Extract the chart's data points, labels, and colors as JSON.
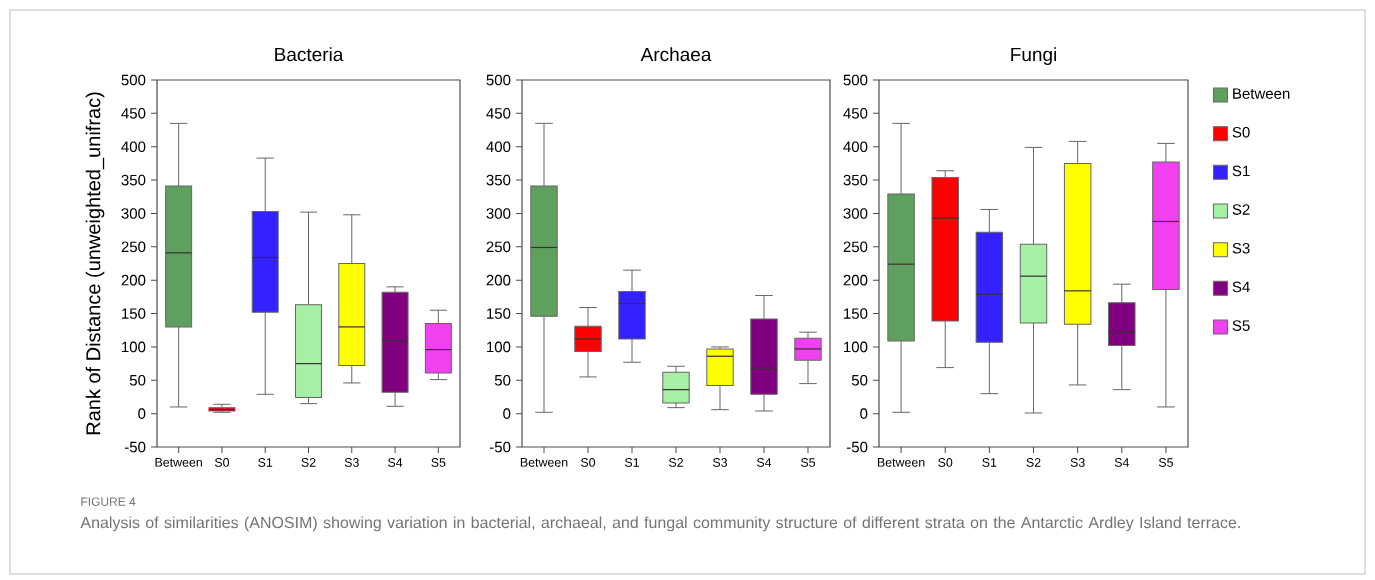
{
  "chart_data": [
    {
      "type": "box",
      "title": "Bacteria",
      "ylabel": "Rank of Distance (unweighted_unifrac)",
      "categories": [
        "Between",
        "S0",
        "S1",
        "S2",
        "S3",
        "S4",
        "S5"
      ],
      "colors": [
        "#5fa05f",
        "#ff0000",
        "#3322ff",
        "#a6f0a6",
        "#ffff00",
        "#800080",
        "#f040f0"
      ],
      "boxes": [
        {
          "low": 10,
          "q1": 130,
          "median": 241,
          "q3": 341,
          "high": 435
        },
        {
          "low": 2,
          "q1": 4,
          "median": 6,
          "q3": 9,
          "high": 14
        },
        {
          "low": 29,
          "q1": 152,
          "median": 234,
          "q3": 303,
          "high": 383
        },
        {
          "low": 15,
          "q1": 24,
          "median": 75,
          "q3": 163,
          "high": 302
        },
        {
          "low": 46,
          "q1": 72,
          "median": 130,
          "q3": 225,
          "high": 298
        },
        {
          "low": 11,
          "q1": 32,
          "median": 109,
          "q3": 182,
          "high": 190
        },
        {
          "low": 51,
          "q1": 61,
          "median": 96,
          "q3": 135,
          "high": 155
        }
      ],
      "ylim": [
        -50,
        500
      ],
      "yticks": [
        -50,
        0,
        50,
        100,
        150,
        200,
        250,
        300,
        350,
        400,
        450,
        500
      ],
      "annotations": [
        "FIGURE 4",
        "Analysis of similarities (ANOSIM) showing variation in bacterial, archaeal, and fungal community structure of different strata on the Antarctic Ardley Island terrace."
      ]
    },
    {
      "type": "box",
      "title": "Archaea",
      "categories": [
        "Between",
        "S0",
        "S1",
        "S2",
        "S3",
        "S4",
        "S5"
      ],
      "colors": [
        "#5fa05f",
        "#ff0000",
        "#3322ff",
        "#a6f0a6",
        "#ffff00",
        "#800080",
        "#f040f0"
      ],
      "boxes": [
        {
          "low": 2,
          "q1": 146,
          "median": 249,
          "q3": 341,
          "high": 435
        },
        {
          "low": 55,
          "q1": 93,
          "median": 112,
          "q3": 131,
          "high": 159
        },
        {
          "low": 77,
          "q1": 112,
          "median": 165,
          "q3": 183,
          "high": 215
        },
        {
          "low": 9,
          "q1": 16,
          "median": 36,
          "q3": 62,
          "high": 71
        },
        {
          "low": 6,
          "q1": 42,
          "median": 86,
          "q3": 97,
          "high": 100
        },
        {
          "low": 4,
          "q1": 29,
          "median": 68,
          "q3": 142,
          "high": 177
        },
        {
          "low": 45,
          "q1": 80,
          "median": 97,
          "q3": 113,
          "high": 122
        }
      ],
      "ylim": [
        -50,
        500
      ],
      "yticks": [
        -50,
        0,
        50,
        100,
        150,
        200,
        250,
        300,
        350,
        400,
        450,
        500
      ]
    },
    {
      "type": "box",
      "title": "Fungi",
      "categories": [
        "Between",
        "S0",
        "S1",
        "S2",
        "S3",
        "S4",
        "S5"
      ],
      "series": [
        {
          "name": "Between",
          "color": "#5fa05f",
          "boxes": [
            {
              "low": 2,
              "q1": 109,
              "median": 224,
              "q3": 329,
              "high": 435
            },
            null,
            null,
            null,
            null,
            null,
            null
          ]
        },
        {
          "name": "S0",
          "color": "#ff0000",
          "boxes": [
            null,
            {
              "low": 69,
              "q1": 139,
              "median": 293,
              "q3": 354,
              "high": 364
            },
            null,
            null,
            null,
            null,
            null
          ]
        },
        {
          "name": "S1",
          "color": "#3322ff",
          "boxes": [
            null,
            null,
            {
              "low": 30,
              "q1": 107,
              "median": 179,
              "q3": 272,
              "high": 306
            },
            null,
            null,
            null,
            null
          ]
        },
        {
          "name": "S2",
          "color": "#a6f0a6",
          "boxes": [
            null,
            null,
            null,
            {
              "low": 1,
              "q1": 136,
              "median": 206,
              "q3": 254,
              "high": 399
            },
            null,
            null,
            null
          ]
        },
        {
          "name": "S3",
          "color": "#ffff00",
          "boxes": [
            null,
            null,
            null,
            null,
            {
              "low": 43,
              "q1": 134,
              "median": 184,
              "q3": 375,
              "high": 408
            },
            null,
            null
          ]
        },
        {
          "name": "S4",
          "color": "#800080",
          "boxes": [
            null,
            null,
            null,
            null,
            null,
            {
              "low": 36,
              "q1": 102,
              "median": 122,
              "q3": 166,
              "high": 194
            },
            null
          ]
        },
        {
          "name": "S5",
          "color": "#f040f0",
          "boxes": [
            null,
            null,
            null,
            null,
            null,
            null,
            {
              "low": 10,
              "q1": 186,
              "median": 288,
              "q3": 377,
              "high": 405
            }
          ]
        }
      ],
      "ylim": [
        -50,
        500
      ],
      "yticks": [
        -50,
        0,
        50,
        100,
        150,
        200,
        250,
        300,
        350,
        400,
        450,
        500
      ],
      "legend": "right"
    }
  ]
}
